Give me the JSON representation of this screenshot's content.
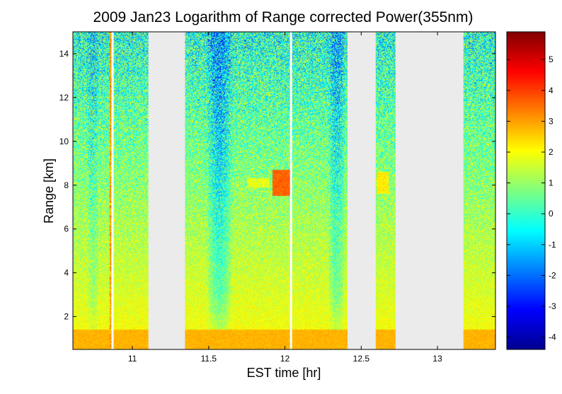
{
  "chart_data": {
    "type": "heatmap",
    "title": "2009 Jan23  Logarithm of Range corrected Power(355nm)",
    "xlabel": "EST time [hr]",
    "ylabel": "Range [km]",
    "xlim": [
      10.61,
      13.38
    ],
    "ylim": [
      0.5,
      15.0
    ],
    "x_ticks": [
      11,
      11.5,
      12,
      12.5,
      13
    ],
    "x_tick_labels": [
      "11",
      "11.5",
      "12",
      "12.5",
      "13"
    ],
    "y_ticks": [
      2,
      4,
      6,
      8,
      10,
      12,
      14
    ],
    "y_tick_labels": [
      "2",
      "4",
      "6",
      "8",
      "10",
      "12",
      "14"
    ],
    "colorbar": {
      "colormap": "jet",
      "range": [
        -4.4,
        5.9
      ],
      "ticks": [
        -4,
        -3,
        -2,
        -1,
        0,
        1,
        2,
        3,
        4,
        5
      ],
      "tick_labels": [
        "-4",
        "-3",
        "-2",
        "-1",
        "0",
        "1",
        "2",
        "3",
        "4",
        "5"
      ]
    },
    "no_data_intervals": [
      [
        11.105,
        11.345
      ],
      [
        12.41,
        12.595
      ],
      [
        12.725,
        13.17
      ]
    ],
    "white_gap_times": [
      10.87,
      12.04
    ],
    "near_surface_layer": {
      "range_top": 1.4,
      "value": 2.8
    },
    "elevated_layers": [
      {
        "t_start": 11.92,
        "t_end": 12.04,
        "range_low": 7.5,
        "range_high": 8.7,
        "value": 3.6
      },
      {
        "t_start": 12.6,
        "t_end": 12.68,
        "range_low": 7.6,
        "range_high": 8.6,
        "value": 2.2
      },
      {
        "t_start": 11.75,
        "t_end": 11.9,
        "range_low": 7.9,
        "range_high": 8.3,
        "value": 1.8
      }
    ],
    "grid": false,
    "legend": "colorbar-right"
  }
}
